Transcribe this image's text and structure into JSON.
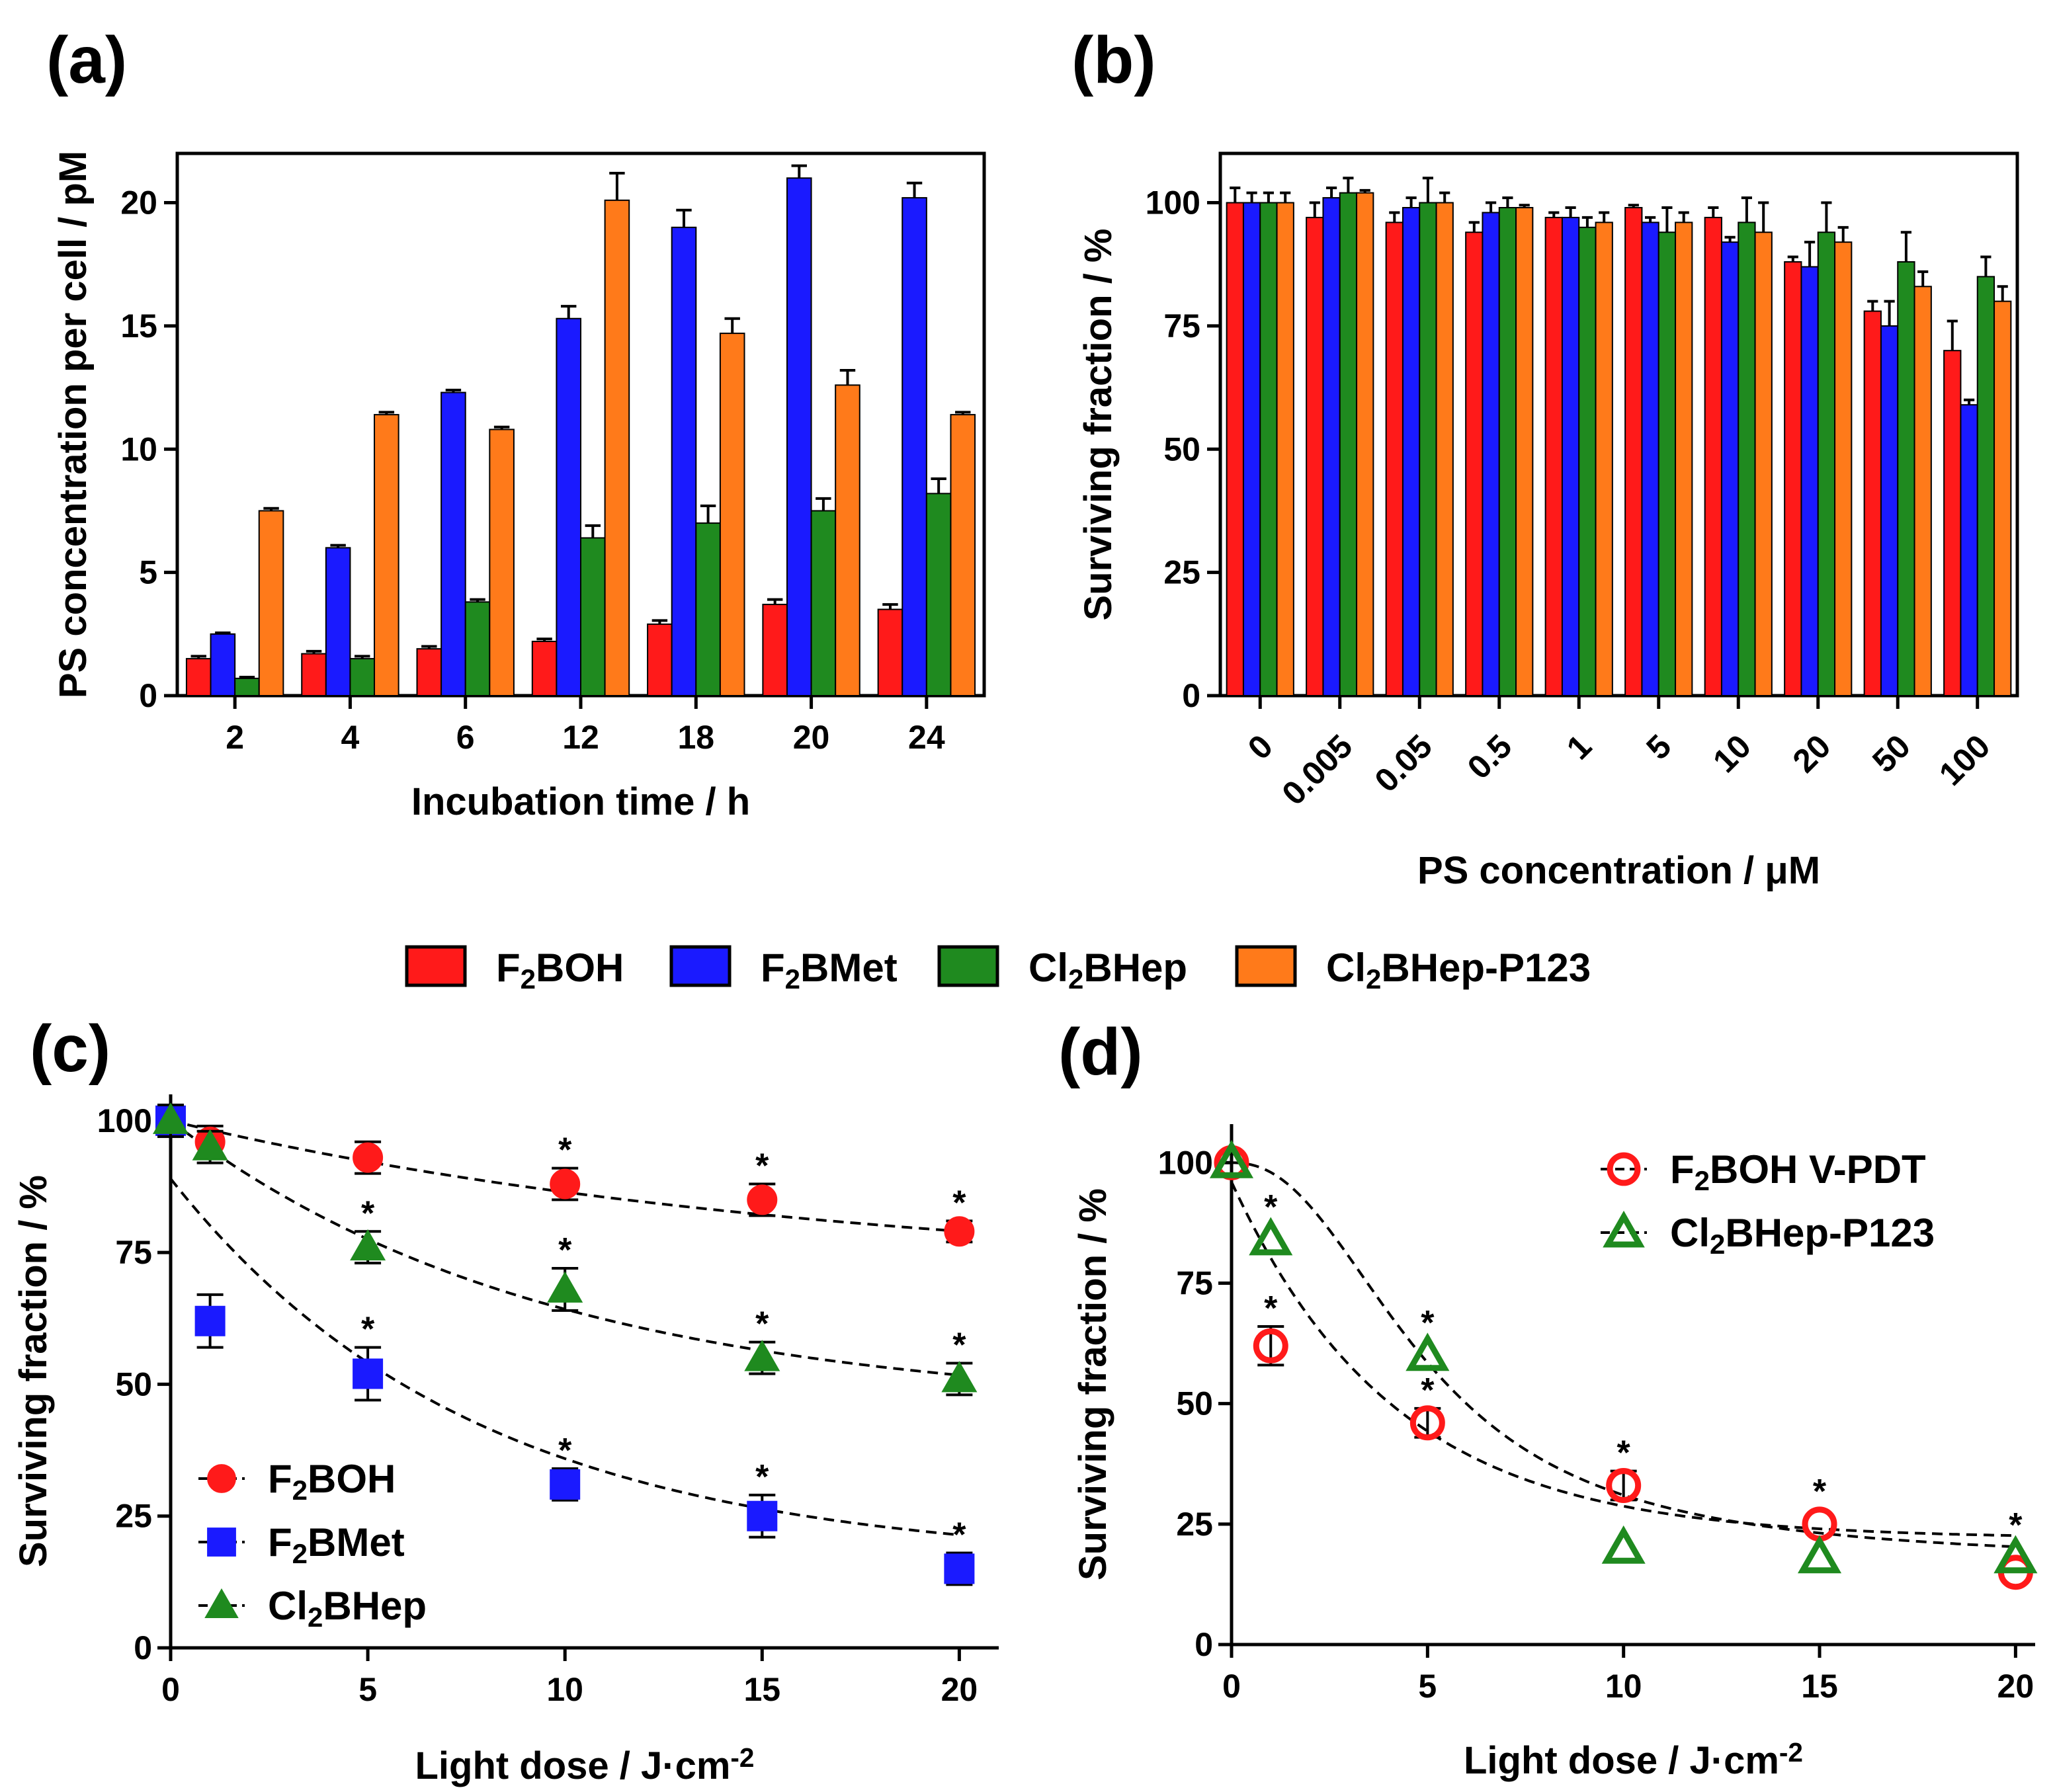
{
  "colors": {
    "red": "#ff1a1a",
    "blue": "#1a1aff",
    "green": "#1f8a1f",
    "orange": "#ff7a1a"
  },
  "legend_main": [
    {
      "key": "red",
      "label": "F2BOH"
    },
    {
      "key": "blue",
      "label": "F2BMet"
    },
    {
      "key": "green",
      "label": "Cl2BHep"
    },
    {
      "key": "orange",
      "label": "Cl2BHep-P123"
    }
  ],
  "chart_data": [
    {
      "id": "a",
      "panel_label": "(a)",
      "type": "bar",
      "xlabel": "Incubation time / h",
      "ylabel": "PS concentration per cell / pM",
      "ylim": [
        0,
        22
      ],
      "yticks": [
        0,
        5,
        10,
        15,
        20
      ],
      "categories": [
        "2",
        "4",
        "6",
        "12",
        "18",
        "20",
        "24"
      ],
      "series": [
        {
          "name": "F2BOH",
          "color_key": "red",
          "values": [
            1.5,
            1.7,
            1.9,
            2.2,
            2.9,
            3.7,
            3.5
          ],
          "errors": [
            0.1,
            0.1,
            0.1,
            0.1,
            0.15,
            0.2,
            0.2
          ]
        },
        {
          "name": "F2BMet",
          "color_key": "blue",
          "values": [
            2.5,
            6.0,
            12.3,
            15.3,
            19.0,
            21.0,
            20.2
          ],
          "errors": [
            0.05,
            0.1,
            0.1,
            0.5,
            0.7,
            0.5,
            0.6
          ]
        },
        {
          "name": "Cl2BHep",
          "color_key": "green",
          "values": [
            0.7,
            1.5,
            3.8,
            6.4,
            7.0,
            7.5,
            8.2
          ],
          "errors": [
            0.05,
            0.1,
            0.1,
            0.5,
            0.7,
            0.5,
            0.6
          ]
        },
        {
          "name": "Cl2BHep-P123",
          "color_key": "orange",
          "values": [
            7.5,
            11.4,
            10.8,
            20.1,
            14.7,
            12.6,
            11.4
          ],
          "errors": [
            0.1,
            0.1,
            0.1,
            1.1,
            0.6,
            0.6,
            0.1
          ]
        }
      ]
    },
    {
      "id": "b",
      "panel_label": "(b)",
      "type": "bar",
      "xlabel": "PS concentration / μM",
      "ylabel": "Surviving fraction / %",
      "ylim": [
        0,
        110
      ],
      "yticks": [
        0,
        25,
        50,
        75,
        100
      ],
      "categories": [
        "0",
        "0.005",
        "0.05",
        "0.5",
        "1",
        "5",
        "10",
        "20",
        "50",
        "100"
      ],
      "series": [
        {
          "name": "F2BOH",
          "color_key": "red",
          "values": [
            100,
            97,
            96,
            94,
            97,
            99,
            97,
            88,
            78,
            70
          ],
          "errors": [
            3,
            3,
            2,
            2,
            1,
            0.5,
            2,
            1,
            2,
            6
          ]
        },
        {
          "name": "F2BMet",
          "color_key": "blue",
          "values": [
            100,
            101,
            99,
            98,
            97,
            96,
            92,
            87,
            75,
            59
          ],
          "errors": [
            2,
            2,
            2,
            2,
            2,
            1,
            1,
            5,
            5,
            1
          ]
        },
        {
          "name": "Cl2BHep",
          "color_key": "green",
          "values": [
            100,
            102,
            100,
            99,
            95,
            94,
            96,
            94,
            88,
            85
          ],
          "errors": [
            2,
            3,
            5,
            2,
            2,
            5,
            5,
            6,
            6,
            4
          ]
        },
        {
          "name": "Cl2BHep-P123",
          "color_key": "orange",
          "values": [
            100,
            102,
            100,
            99,
            96,
            96,
            94,
            92,
            83,
            80
          ],
          "errors": [
            2,
            0.5,
            2,
            0.5,
            2,
            2,
            6,
            3,
            3,
            3
          ]
        }
      ]
    },
    {
      "id": "c",
      "panel_label": "(c)",
      "type": "scatter",
      "xlabel": "Light dose / J·cm",
      "xlabel_sup": "-2",
      "ylabel": "Surviving fraction / %",
      "xlim": [
        0,
        21
      ],
      "ylim": [
        0,
        105
      ],
      "xticks": [
        0,
        5,
        10,
        15,
        20
      ],
      "yticks": [
        0,
        25,
        50,
        75,
        100
      ],
      "legend_position": "bottom-left",
      "series": [
        {
          "name": "F2BOH",
          "color_key": "red",
          "marker": "circle",
          "filled": true,
          "x": [
            0,
            1,
            5,
            10,
            15,
            20
          ],
          "y": [
            100,
            96,
            93,
            88,
            85,
            79
          ],
          "errors": [
            3,
            3,
            3,
            3,
            3,
            2
          ],
          "significant": [
            false,
            false,
            false,
            true,
            true,
            true
          ],
          "fit": {
            "a": 70,
            "b": 30,
            "k": 0.06
          }
        },
        {
          "name": "F2BMet",
          "color_key": "blue",
          "marker": "square",
          "filled": true,
          "x": [
            0,
            1,
            5,
            10,
            15,
            20
          ],
          "y": [
            100,
            62,
            52,
            31,
            25,
            15
          ],
          "errors": [
            3,
            5,
            5,
            3,
            4,
            3
          ],
          "significant": [
            false,
            false,
            true,
            true,
            true,
            true
          ],
          "fit": {
            "a": 16,
            "b": 73,
            "k": 0.13
          }
        },
        {
          "name": "Cl2BHep",
          "color_key": "green",
          "marker": "triangle",
          "filled": true,
          "x": [
            0,
            1,
            5,
            10,
            15,
            20
          ],
          "y": [
            100,
            95,
            76,
            68,
            55,
            51
          ],
          "errors": [
            3,
            3,
            3,
            4,
            3,
            3
          ],
          "significant": [
            false,
            false,
            true,
            true,
            true,
            true
          ],
          "fit": {
            "a": 45,
            "b": 55,
            "k": 0.105
          }
        }
      ]
    },
    {
      "id": "d",
      "panel_label": "(d)",
      "type": "scatter",
      "xlabel": "Light dose / J·cm",
      "xlabel_sup": "-2",
      "ylabel": "Surviving fraction / %",
      "xlim": [
        0,
        20.5
      ],
      "ylim": [
        0,
        108
      ],
      "xticks": [
        0,
        5,
        10,
        15,
        20
      ],
      "yticks": [
        0,
        25,
        50,
        75,
        100
      ],
      "legend_position": "top-right",
      "series": [
        {
          "name": "F2BOH V-PDT",
          "color_key": "red",
          "marker": "circle",
          "filled": false,
          "x": [
            0,
            1,
            5,
            10,
            15,
            20
          ],
          "y": [
            100,
            62,
            46,
            33,
            25,
            15
          ],
          "errors": [
            0,
            4,
            3,
            3,
            0,
            0
          ],
          "significant": [
            false,
            true,
            true,
            true,
            true,
            false
          ],
          "fit": {
            "kind": "exp",
            "a": 22,
            "b": 74,
            "k": 0.24
          }
        },
        {
          "name": "Cl2BHep-P123",
          "color_key": "green",
          "marker": "triangle",
          "filled": false,
          "x": [
            0,
            1,
            5,
            10,
            15,
            20
          ],
          "y": [
            100,
            84,
            60,
            20,
            18,
            18
          ],
          "errors": [
            0,
            0,
            0,
            0,
            0,
            0
          ],
          "significant": [
            false,
            true,
            true,
            false,
            false,
            true
          ],
          "fit": {
            "kind": "sigmoid",
            "bottom": 17,
            "top": 100,
            "x50": 5,
            "hill": 2.3
          }
        }
      ]
    }
  ]
}
